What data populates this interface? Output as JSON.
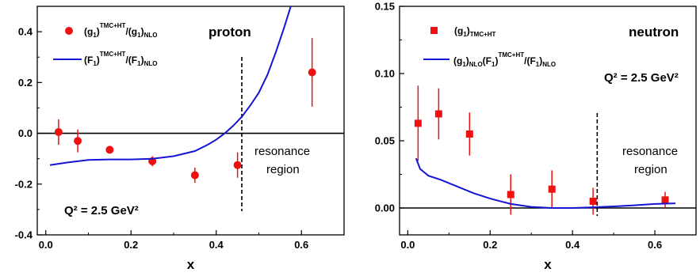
{
  "chart_data": [
    {
      "type": "scatter",
      "panel_label": "proton",
      "annotation": "Q² = 2.5 GeV²",
      "region_label": [
        "resonance",
        "region"
      ],
      "xlabel": "x",
      "xlim": [
        -0.02,
        0.7
      ],
      "ylim": [
        -0.4,
        0.5
      ],
      "xticks": [
        "0.0",
        "0.2",
        "0.4",
        "0.6"
      ],
      "yticks": [
        "-0.4",
        "-0.2",
        "0.0",
        "0.2",
        "0.4"
      ],
      "ytick_values": [
        -0.4,
        -0.2,
        0.0,
        0.2,
        0.4
      ],
      "xtick_values": [
        0.0,
        0.2,
        0.4,
        0.6
      ],
      "vline_x": 0.46,
      "hline_y": 0.0,
      "series": [
        {
          "name": "(g1)TMC+HT/(g1)NLO",
          "name_main": "(g",
          "name_parts": [
            "(g",
            "1",
            ")",
            "TMC+HT",
            "/(g",
            "1",
            ")",
            "NLO"
          ],
          "marker": "circle",
          "color": "#ee1111",
          "points": [
            {
              "x": 0.03,
              "y": 0.005,
              "err": 0.05
            },
            {
              "x": 0.075,
              "y": -0.03,
              "err": 0.045
            },
            {
              "x": 0.15,
              "y": -0.065,
              "err": 0.0
            },
            {
              "x": 0.25,
              "y": -0.11,
              "err": 0.02
            },
            {
              "x": 0.35,
              "y": -0.165,
              "err": 0.03
            },
            {
              "x": 0.45,
              "y": -0.125,
              "err": 0.05
            },
            {
              "x": 0.625,
              "y": 0.24,
              "err": 0.135
            }
          ]
        },
        {
          "name": "(F1)TMC+HT/(F1)NLO",
          "name_parts": [
            "(F",
            "1",
            ")",
            "TMC+HT",
            "/(F",
            "1",
            ")",
            "NLO"
          ],
          "line": true,
          "color": "#1414d2",
          "x": [
            0.01,
            0.05,
            0.1,
            0.15,
            0.2,
            0.25,
            0.3,
            0.35,
            0.38,
            0.4,
            0.42,
            0.44,
            0.46,
            0.48,
            0.5,
            0.52,
            0.54,
            0.56,
            0.575
          ],
          "y": [
            -0.125,
            -0.115,
            -0.105,
            -0.103,
            -0.103,
            -0.1,
            -0.09,
            -0.07,
            -0.045,
            -0.025,
            0.0,
            0.03,
            0.065,
            0.11,
            0.16,
            0.23,
            0.32,
            0.42,
            0.5
          ]
        }
      ]
    },
    {
      "type": "scatter",
      "panel_label": "neutron",
      "annotation": "Q² = 2.5 GeV²",
      "region_label": [
        "resonance",
        "region"
      ],
      "xlabel": "x",
      "xlim": [
        -0.02,
        0.7
      ],
      "ylim": [
        -0.02,
        0.15
      ],
      "xticks": [
        "0.0",
        "0.2",
        "0.4",
        "0.6"
      ],
      "yticks": [
        "0.00",
        "0.05",
        "0.10",
        "0.15"
      ],
      "ytick_values": [
        0.0,
        0.05,
        0.1,
        0.15
      ],
      "xtick_values": [
        0.0,
        0.2,
        0.4,
        0.6
      ],
      "vline_x": 0.46,
      "hline_y": 0.0,
      "series": [
        {
          "name": "(g1)TMC+HT",
          "name_parts": [
            "(g",
            "1",
            ")",
            "TMC+HT"
          ],
          "marker": "square",
          "color": "#ee1111",
          "points": [
            {
              "x": 0.025,
              "y": 0.063,
              "err": 0.028
            },
            {
              "x": 0.075,
              "y": 0.07,
              "err": 0.019
            },
            {
              "x": 0.15,
              "y": 0.055,
              "err": 0.016
            },
            {
              "x": 0.25,
              "y": 0.01,
              "err": 0.015
            },
            {
              "x": 0.35,
              "y": 0.014,
              "err": 0.014
            },
            {
              "x": 0.45,
              "y": 0.005,
              "err": 0.01
            },
            {
              "x": 0.625,
              "y": 0.006,
              "err": 0.006
            }
          ]
        },
        {
          "name": "(g1)NLO(F1)TMC+HT/(F1)NLO",
          "name_parts": [
            "(g",
            "1",
            ")",
            "NLO",
            "(F",
            "1",
            ")",
            "TMC+HT",
            "/(F",
            "1",
            ")",
            "NLO"
          ],
          "line": true,
          "color": "#1414d2",
          "x": [
            0.02,
            0.03,
            0.05,
            0.08,
            0.12,
            0.16,
            0.2,
            0.25,
            0.3,
            0.35,
            0.4,
            0.45,
            0.5,
            0.55,
            0.6,
            0.65
          ],
          "y": [
            0.037,
            0.029,
            0.024,
            0.021,
            0.016,
            0.011,
            0.007,
            0.003,
            0.0008,
            0.0,
            0.0,
            0.0005,
            0.0012,
            0.002,
            0.003,
            0.0035
          ]
        }
      ]
    }
  ]
}
